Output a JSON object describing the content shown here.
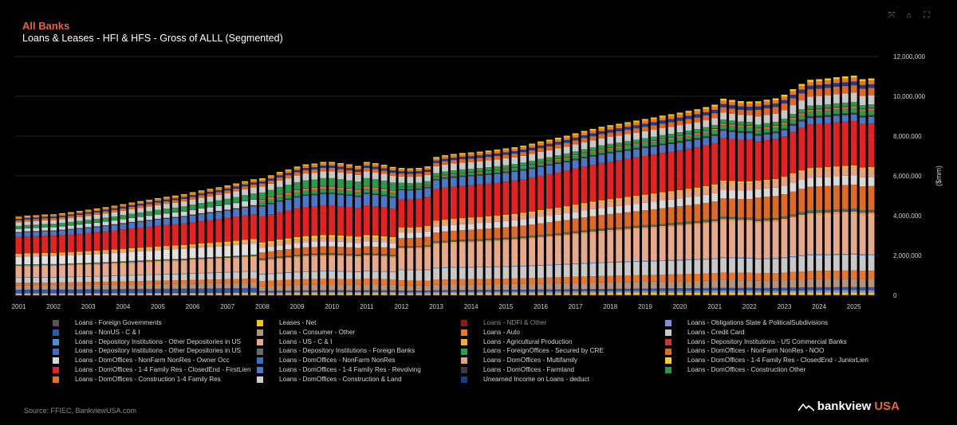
{
  "header": {
    "title": "All Banks",
    "subtitle": "Loans & Leases - HFI & HFS - Gross of ALLL (Segmented)"
  },
  "toolbar": {
    "icons": [
      "expand-icon",
      "home-icon",
      "fullscreen-icon"
    ],
    "glyphs": [
      "⤧",
      "⌂",
      "⛶"
    ]
  },
  "footer": {
    "source": "Source: FFIEC, BankviewUSA.com",
    "brand_main": "bankview",
    "brand_accent": "USA"
  },
  "chart_data": {
    "type": "bar",
    "stacked": true,
    "title": "Loans & Leases - HFI & HFS - Gross of ALLL (Segmented)",
    "xlabel": "",
    "ylabel": "($mm)",
    "ylim": [
      0,
      12000000
    ],
    "yticks": [
      0,
      2000000,
      4000000,
      6000000,
      8000000,
      10000000,
      12000000
    ],
    "ytick_labels": [
      "0",
      "2,000,000",
      "4,000,000",
      "6,000,000",
      "8,000,000",
      "10,000,000",
      "12,000,000"
    ],
    "xtick_labels": [
      "2001",
      "2002",
      "2003",
      "2004",
      "2005",
      "2006",
      "2007",
      "2008",
      "2009",
      "2010",
      "2011",
      "2012",
      "2013",
      "2014",
      "2015",
      "2016",
      "2017",
      "2018",
      "2019",
      "2020",
      "2021",
      "2022",
      "2023",
      "2024",
      "2025"
    ],
    "first_year": 2001,
    "quarters_per_year": 4,
    "num_bars": 99,
    "totals": [
      3950000,
      4000000,
      4020000,
      4060000,
      4070000,
      4120000,
      4180000,
      4240000,
      4300000,
      4360000,
      4430000,
      4500000,
      4580000,
      4660000,
      4730000,
      4800000,
      4880000,
      4950000,
      5010000,
      5080000,
      5180000,
      5270000,
      5350000,
      5430000,
      5520000,
      5620000,
      5730000,
      5830000,
      5880000,
      6030000,
      6200000,
      6320000,
      6470000,
      6580000,
      6620000,
      6700000,
      6700000,
      6640000,
      6580000,
      6500000,
      6700000,
      6640000,
      6560000,
      6450000,
      6400000,
      6380000,
      6400000,
      6480000,
      6950000,
      7040000,
      7100000,
      7150000,
      7180000,
      7220000,
      7270000,
      7320000,
      7380000,
      7440000,
      7520000,
      7620000,
      7730000,
      7820000,
      7920000,
      8020000,
      8140000,
      8260000,
      8360000,
      8470000,
      8550000,
      8620000,
      8700000,
      8780000,
      8860000,
      8940000,
      9030000,
      9100000,
      9180000,
      9270000,
      9350000,
      9460000,
      9580000,
      9880000,
      9820000,
      9760000,
      9740000,
      9750000,
      9830000,
      9900000,
      10080000,
      10360000,
      10620000,
      10830000,
      10860000,
      10900000,
      10960000,
      11000000,
      11040000,
      10860000,
      10900000
    ],
    "breakpoints": [
      0,
      27,
      28,
      43,
      44,
      48,
      84,
      85,
      98
    ],
    "series": [
      {
        "name": "Loans - Foreign Governments",
        "color": "#555555",
        "shares": [
          0.002,
          0.002,
          0.002,
          0.002,
          0.002,
          0.002,
          0.002,
          0.002,
          0.002
        ]
      },
      {
        "name": "Leases - Net",
        "color": "#f5c518",
        "shares": [
          0.02,
          0.018,
          0.016,
          0.016,
          0.016,
          0.015,
          0.014,
          0.014,
          0.014
        ]
      },
      {
        "name": "Loans - NDFI & Other",
        "color": "#8b1a1a",
        "shares": [
          0,
          0,
          0,
          0,
          0,
          0,
          0,
          0,
          0
        ]
      },
      {
        "name": "Loans - Obligations State & PoliticalSubdivisions",
        "color": "#7f8fdc",
        "shares": [
          0.008,
          0.008,
          0.01,
          0.012,
          0.012,
          0.013,
          0.013,
          0.012,
          0.012
        ]
      },
      {
        "name": "Loans - NonUS - C & I",
        "color": "#2f5aa8",
        "shares": [
          0.05,
          0.045,
          0.015,
          0.015,
          0.015,
          0.015,
          0.016,
          0.016,
          0.016
        ]
      },
      {
        "name": "Loans - Consumer - Other",
        "color": "#b5927a",
        "shares": [
          0.06,
          0.055,
          0.05,
          0.05,
          0.05,
          0.048,
          0.045,
          0.045,
          0.045
        ]
      },
      {
        "name": "Loans - Auto",
        "color": "#e8762b",
        "shares": [
          0.04,
          0.04,
          0.05,
          0.05,
          0.05,
          0.045,
          0.045,
          0.045,
          0.045
        ]
      },
      {
        "name": "Loans - Credit Card",
        "color": "#c8c8c8",
        "shares": [
          0.07,
          0.07,
          0.065,
          0.065,
          0.1,
          0.1,
          0.085,
          0.085,
          0.085
        ]
      },
      {
        "name": "Loans - Depository Institutions - Other Depositories in US",
        "color": "#4a90d9",
        "shares": [
          0.005,
          0.005,
          0.005,
          0.005,
          0.005,
          0.005,
          0.005,
          0.005,
          0.005
        ]
      },
      {
        "name": "Loans - US - C & I",
        "color": "#e8a98a",
        "shares": [
          0.16,
          0.14,
          0.13,
          0.13,
          0.2,
          0.21,
          0.22,
          0.22,
          0.22
        ]
      },
      {
        "name": "Loans - Agricultural Production",
        "color": "#f0b030",
        "shares": [
          0.01,
          0.009,
          0.009,
          0.009,
          0.009,
          0.008,
          0.008,
          0.008,
          0.008
        ]
      },
      {
        "name": "Loans - Depository Institutions - US Commercial Banks",
        "color": "#c23a2a",
        "shares": [
          0.004,
          0.004,
          0.004,
          0.004,
          0.004,
          0.004,
          0.004,
          0.004,
          0.004
        ]
      },
      {
        "name": "Loans - Depository Institutions - Other Depositories in US ",
        "color": "#3a6fc4",
        "shares": [
          0.004,
          0.004,
          0.004,
          0.004,
          0.004,
          0.004,
          0.004,
          0.004,
          0.004
        ]
      },
      {
        "name": "Loans - Depository Institutions - Foreign Banks",
        "color": "#6a6a6a",
        "shares": [
          0.004,
          0.004,
          0.004,
          0.004,
          0.004,
          0.004,
          0.004,
          0.004,
          0.004
        ]
      },
      {
        "name": "Loans - ForeignOffices - Secured by CRE",
        "color": "#27a04a",
        "shares": [
          0.003,
          0.003,
          0.003,
          0.003,
          0.003,
          0.003,
          0.003,
          0.003,
          0.003
        ]
      },
      {
        "name": "Loans - DomOffices - NonFarm NonRes - NOO",
        "color": "#e06a25",
        "shares": [
          0,
          0,
          0.06,
          0.06,
          0.08,
          0.08,
          0.11,
          0.13,
          0.13
        ]
      },
      {
        "name": "Loans - DomOffices - NonFarm NonRes - Owner Occ",
        "color": "#d8d8d8",
        "shares": [
          0,
          0,
          0.045,
          0.045,
          0.05,
          0.05,
          0.05,
          0.05,
          0.05
        ]
      },
      {
        "name": "Loans - DomOffices - NonFarm NonRes",
        "color": "#e0e0e0",
        "shares": [
          0.11,
          0.11,
          0,
          0,
          0,
          0,
          0,
          0,
          0
        ]
      },
      {
        "name": "Loans - DomOffices - Multifamily",
        "color": "#e8a080",
        "shares": [
          0.025,
          0.025,
          0.035,
          0.035,
          0.04,
          0.04,
          0.045,
          0.045,
          0.045
        ]
      },
      {
        "name": "Loans - DomOffices - 1-4 Family Res - ClosedEnd - JuniorLien",
        "color": "#f5d020",
        "shares": [
          0.02,
          0.02,
          0.02,
          0.02,
          0.012,
          0.012,
          0.01,
          0.008,
          0.008
        ]
      },
      {
        "name": "Loans - DomOffices - 1-4 Family Res - ClosedEnd - FirstLien",
        "color": "#e42222",
        "shares": [
          0.24,
          0.25,
          0.26,
          0.26,
          0.27,
          0.28,
          0.25,
          0.24,
          0.24
        ]
      },
      {
        "name": "Loans - DomOffices - 1-4 Family Res - Revolving",
        "color": "#4a78c8",
        "shares": [
          0.06,
          0.08,
          0.1,
          0.1,
          0.09,
          0.08,
          0.04,
          0.035,
          0.035
        ]
      },
      {
        "name": "Loans - DomOffices - Farmland",
        "color": "#3a3a3a",
        "shares": [
          0.01,
          0.01,
          0.01,
          0.01,
          0.01,
          0.01,
          0.01,
          0.01,
          0.01
        ]
      },
      {
        "name": "Loans - DomOffices - Construction Other",
        "color": "#2b9a4a",
        "shares": [
          0,
          0,
          0.035,
          0.035,
          0.015,
          0.015,
          0.025,
          0.025,
          0.025
        ]
      },
      {
        "name": "Loans - DomOffices - Construction 1-4 Family Res",
        "color": "#e8702e",
        "shares": [
          0,
          0,
          0.02,
          0.02,
          0.005,
          0.005,
          0.01,
          0.01,
          0.01
        ]
      },
      {
        "name": "Loans - DomOffices - Construction & Land",
        "color": "#cfcfcf",
        "shares": [
          0.045,
          0.055,
          0,
          0,
          0,
          0,
          0,
          0,
          0
        ]
      },
      {
        "name": "Unearned Income on Loans - deduct",
        "color": "#1e3a8a",
        "shares": [
          0.003,
          0.003,
          0.003,
          0.003,
          0.003,
          0.003,
          0.003,
          0.003,
          0.003
        ]
      }
    ],
    "top_bands": [
      {
        "name": "Loans - DomOffices - Construction Other",
        "color": "#2b9a4a",
        "shares": [
          0.04,
          0.06,
          0.07,
          0.07,
          0.04,
          0.03,
          0.02,
          0.02,
          0.02
        ]
      },
      {
        "name": "Loans - Credit Card",
        "color": "#c8c8c8",
        "shares": [
          0.05,
          0.06,
          0.06,
          0.06,
          0.06,
          0.06,
          0.04,
          0.05,
          0.05
        ]
      },
      {
        "name": "Loans - DomOffices - NonFarm NonRes - NOO",
        "color": "#e06a25",
        "shares": [
          0.03,
          0.03,
          0.03,
          0.03,
          0.03,
          0.03,
          0.03,
          0.04,
          0.04
        ]
      },
      {
        "name": "Loans - DomOffices - 1-4 Family Res - Revolving",
        "color": "#1e3a8a",
        "shares": [
          0.02,
          0.02,
          0.02,
          0.02,
          0.02,
          0.02,
          0.02,
          0.02,
          0.02
        ]
      },
      {
        "name": "Loans - Auto",
        "color": "#e8762b",
        "shares": [
          0.02,
          0.02,
          0.02,
          0.02,
          0.02,
          0.02,
          0.02,
          0.02,
          0.02
        ]
      },
      {
        "name": "Leases - Net",
        "color": "#f5c518",
        "shares": [
          0.012,
          0.012,
          0.012,
          0.012,
          0.012,
          0.012,
          0.012,
          0.012,
          0.012
        ]
      }
    ]
  },
  "legend": [
    {
      "label": "Loans - Foreign Governments",
      "color": "#555555",
      "muted": false
    },
    {
      "label": "Leases - Net",
      "color": "#f5c518",
      "muted": false
    },
    {
      "label": "Loans - NDFI & Other",
      "color": "#8b1a1a",
      "muted": true
    },
    {
      "label": "Loans - Obligations State & PoliticalSubdivisions",
      "color": "#7f8fdc",
      "muted": false
    },
    {
      "label": "Loans - NonUS - C & I",
      "color": "#2f5aa8",
      "muted": false
    },
    {
      "label": "Loans - Consumer - Other",
      "color": "#b5927a",
      "muted": false
    },
    {
      "label": "Loans - Auto",
      "color": "#e8762b",
      "muted": false
    },
    {
      "label": "Loans - Credit Card",
      "color": "#c8c8c8",
      "muted": false
    },
    {
      "label": "Loans - Depository Institutions - Other Depositories in US",
      "color": "#4a90d9",
      "muted": false
    },
    {
      "label": "Loans - US - C & I",
      "color": "#e8a98a",
      "muted": false
    },
    {
      "label": "Loans - Agricultural Production",
      "color": "#f0b030",
      "muted": false
    },
    {
      "label": "Loans - Depository Institutions - US Commercial Banks",
      "color": "#c23a2a",
      "muted": false
    },
    {
      "label": "Loans - Depository Institutions - Other Depositories in US",
      "color": "#3a6fc4",
      "muted": false
    },
    {
      "label": "Loans - Depository Institutions - Foreign Banks",
      "color": "#6a6a6a",
      "muted": false
    },
    {
      "label": "Loans - ForeignOffices - Secured by CRE",
      "color": "#27a04a",
      "muted": false
    },
    {
      "label": "Loans - DomOffices - NonFarm NonRes - NOO",
      "color": "#e06a25",
      "muted": false
    },
    {
      "label": "Loans - DomOffices - NonFarm NonRes - Owner Occ",
      "color": "#d8d8d8",
      "muted": false
    },
    {
      "label": "Loans - DomOffices - NonFarm NonRes",
      "color": "#3a6fc4",
      "muted": false
    },
    {
      "label": "Loans - DomOffices - Multifamily",
      "color": "#e8a080",
      "muted": false
    },
    {
      "label": "Loans - DomOffices - 1-4 Family Res - ClosedEnd - JuniorLien",
      "color": "#f5d020",
      "muted": false
    },
    {
      "label": "Loans - DomOffices - 1-4 Family Res - ClosedEnd - FirstLien",
      "color": "#e42222",
      "muted": false
    },
    {
      "label": "Loans - DomOffices - 1-4 Family Res - Revolving",
      "color": "#4a78c8",
      "muted": false
    },
    {
      "label": "Loans - DomOffices - Farmland",
      "color": "#3a3a3a",
      "muted": false
    },
    {
      "label": "Loans - DomOffices - Construction Other",
      "color": "#2b9a4a",
      "muted": false
    },
    {
      "label": "Loans - DomOffices - Construction 1-4 Family Res",
      "color": "#e8702e",
      "muted": false
    },
    {
      "label": "Loans - DomOffices - Construction & Land",
      "color": "#cfcfcf",
      "muted": false
    },
    {
      "label": "Unearned Income on Loans - deduct",
      "color": "#1e3a8a",
      "muted": false
    }
  ]
}
